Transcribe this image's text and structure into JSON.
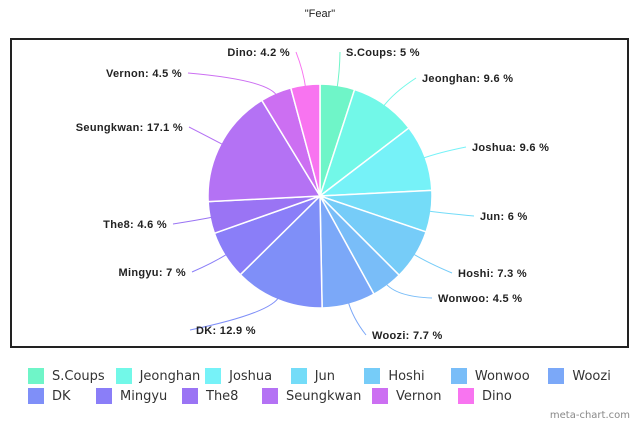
{
  "chart_data": {
    "type": "pie",
    "title": "\"Fear\"",
    "categories": [
      "S.Coups",
      "Jeonghan",
      "Joshua",
      "Jun",
      "Hoshi",
      "Wonwoo",
      "Woozi",
      "DK",
      "Mingyu",
      "The8",
      "Seungkwan",
      "Vernon",
      "Dino"
    ],
    "values": [
      5,
      9.6,
      9.6,
      6,
      7.3,
      4.5,
      7.7,
      12.9,
      7,
      4.6,
      17.1,
      4.5,
      4.2
    ],
    "colors": [
      "#6ff5c8",
      "#72f8e8",
      "#76f2f8",
      "#74dcf8",
      "#76ccf8",
      "#79bdf8",
      "#7ba8f8",
      "#7f8ff8",
      "#8a7ef8",
      "#9a74f4",
      "#b472f4",
      "#cc6ff2",
      "#f874f0"
    ],
    "labels": [
      "S.Coups: 5 %",
      "Jeonghan: 9.6 %",
      "Joshua: 9.6 %",
      "Jun: 6 %",
      "Hoshi: 7.3 %",
      "Wonwoo: 4.5 %",
      "Woozi: 7.7 %",
      "DK: 12.9 %",
      "Mingyu: 7 %",
      "The8: 4.6 %",
      "Seungkwan: 17.1 %",
      "Vernon: 4.5 %",
      "Dino: 4.2 %"
    ],
    "legend_position": "bottom",
    "unit": "%"
  },
  "header": {
    "title": "\"Fear\""
  },
  "legend": {
    "rows": [
      [
        "S.Coups",
        "Jeonghan",
        "Joshua",
        "Jun",
        "Hoshi",
        "Wonwoo",
        "Woozi"
      ],
      [
        "DK",
        "Mingyu",
        "The8",
        "Seungkwan",
        "Vernon",
        "Dino"
      ]
    ]
  },
  "watermark": "meta-chart.com"
}
